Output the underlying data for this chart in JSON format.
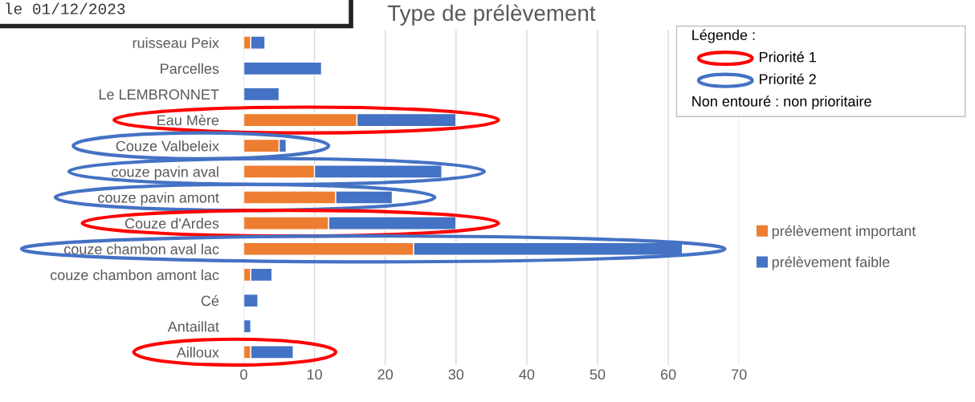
{
  "chart_data": {
    "type": "bar",
    "orientation": "horizontal",
    "stacked": true,
    "title": "Type de prélèvement",
    "categories": [
      "ruisseau Peix",
      "Parcelles",
      "Le LEMBRONNET",
      "Eau Mère",
      "Couze Valbeleix",
      "couze pavin aval",
      "couze pavin amont",
      "Couze d'Ardes",
      "couze chambon aval lac",
      "couze chambon amont lac",
      "Cé",
      "Antaillat",
      "Ailloux"
    ],
    "series": [
      {
        "name": "prélèvement important",
        "color": "#ed7d31",
        "values": [
          1,
          0,
          0,
          16,
          5,
          10,
          13,
          12,
          24,
          1,
          0,
          0,
          1
        ]
      },
      {
        "name": "prélèvement faible",
        "color": "#4472c4",
        "values": [
          2,
          11,
          5,
          14,
          1,
          18,
          8,
          18,
          38,
          3,
          2,
          1,
          6
        ]
      }
    ],
    "xlim": [
      0,
      70
    ],
    "xticks": [
      0,
      10,
      20,
      30,
      40,
      50,
      60,
      70
    ],
    "grid": "x",
    "legend": "right",
    "annotations": [
      "le 01/12/2023",
      "Légende :",
      "Priorité 1",
      "Priorité 2",
      "Non entouré : non prioritaire"
    ]
  }
}
